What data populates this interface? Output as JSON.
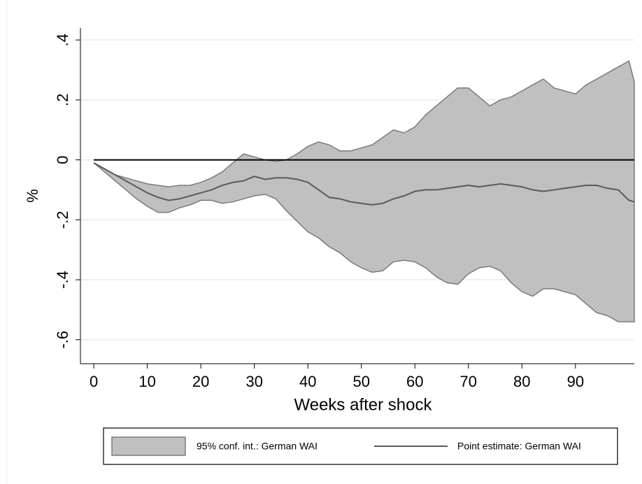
{
  "chart_data": {
    "type": "line",
    "x_label": "Weeks after shock",
    "y_label": "%",
    "x": [
      0,
      2,
      4,
      6,
      8,
      10,
      12,
      14,
      16,
      18,
      20,
      22,
      24,
      26,
      28,
      30,
      32,
      34,
      36,
      38,
      40,
      42,
      44,
      46,
      48,
      50,
      52,
      54,
      56,
      58,
      60,
      62,
      64,
      66,
      68,
      70,
      72,
      74,
      76,
      78,
      80,
      82,
      84,
      86,
      88,
      90,
      92,
      94,
      96,
      98,
      100,
      101
    ],
    "series": [
      {
        "name": "95% conf. int.: German WAI",
        "type": "band",
        "color": "#c0c0c0",
        "stroke": "#7a7a7a",
        "lower": [
          -0.01,
          -0.04,
          -0.07,
          -0.1,
          -0.13,
          -0.155,
          -0.175,
          -0.175,
          -0.16,
          -0.15,
          -0.135,
          -0.135,
          -0.145,
          -0.14,
          -0.13,
          -0.12,
          -0.115,
          -0.13,
          -0.17,
          -0.205,
          -0.24,
          -0.26,
          -0.29,
          -0.31,
          -0.34,
          -0.36,
          -0.375,
          -0.37,
          -0.34,
          -0.335,
          -0.34,
          -0.36,
          -0.39,
          -0.41,
          -0.415,
          -0.38,
          -0.36,
          -0.355,
          -0.37,
          -0.41,
          -0.44,
          -0.455,
          -0.43,
          -0.43,
          -0.44,
          -0.45,
          -0.48,
          -0.51,
          -0.52,
          -0.54,
          -0.54,
          -0.54
        ],
        "upper": [
          -0.01,
          -0.03,
          -0.05,
          -0.06,
          -0.07,
          -0.08,
          -0.085,
          -0.09,
          -0.085,
          -0.085,
          -0.075,
          -0.06,
          -0.04,
          -0.01,
          0.02,
          0.01,
          0.0,
          -0.005,
          0.0,
          0.02,
          0.045,
          0.06,
          0.05,
          0.03,
          0.03,
          0.04,
          0.05,
          0.075,
          0.1,
          0.09,
          0.11,
          0.15,
          0.18,
          0.21,
          0.24,
          0.24,
          0.21,
          0.18,
          0.2,
          0.21,
          0.23,
          0.25,
          0.27,
          0.24,
          0.23,
          0.22,
          0.25,
          0.27,
          0.29,
          0.31,
          0.33,
          0.26
        ]
      },
      {
        "name": "Point estimate: German WAI",
        "type": "line",
        "color": "#5a5a5a",
        "values": [
          -0.01,
          -0.03,
          -0.05,
          -0.07,
          -0.09,
          -0.11,
          -0.125,
          -0.135,
          -0.13,
          -0.12,
          -0.11,
          -0.1,
          -0.085,
          -0.075,
          -0.07,
          -0.055,
          -0.065,
          -0.06,
          -0.06,
          -0.065,
          -0.075,
          -0.1,
          -0.125,
          -0.13,
          -0.14,
          -0.145,
          -0.15,
          -0.145,
          -0.13,
          -0.12,
          -0.105,
          -0.1,
          -0.1,
          -0.095,
          -0.09,
          -0.085,
          -0.09,
          -0.085,
          -0.08,
          -0.085,
          -0.09,
          -0.1,
          -0.105,
          -0.1,
          -0.095,
          -0.09,
          -0.085,
          -0.085,
          -0.095,
          -0.1,
          -0.135,
          -0.14
        ]
      }
    ],
    "reference_line": 0,
    "xlim": [
      -2.5,
      101
    ],
    "ylim": [
      -0.68,
      0.44
    ],
    "xticks": [
      0,
      10,
      20,
      30,
      40,
      50,
      60,
      70,
      80,
      90
    ],
    "yticks": [
      {
        "value": -0.6,
        "label": "-.6"
      },
      {
        "value": -0.4,
        "label": "-.4"
      },
      {
        "value": -0.2,
        "label": "-.2"
      },
      0,
      {
        "value": 0.2,
        "label": ".2"
      },
      {
        "value": 0.4,
        "label": ".4"
      }
    ],
    "grid": true
  }
}
